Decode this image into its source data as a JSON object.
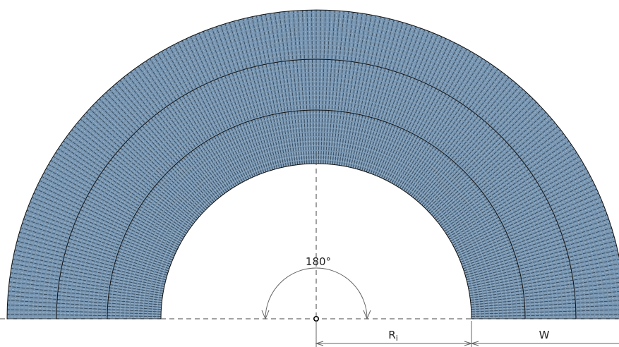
{
  "diagram": {
    "angle_label": "180°",
    "inner_radius_label": "R",
    "inner_radius_subscript": "i",
    "width_label": "W"
  },
  "colors": {
    "belt_fill": "#7896b2",
    "belt_rib": "#1f2e3b",
    "belt_rib_light": "#d6e1ea",
    "outline": "#111111",
    "dimension_line": "#555555",
    "background": "#ffffff"
  }
}
